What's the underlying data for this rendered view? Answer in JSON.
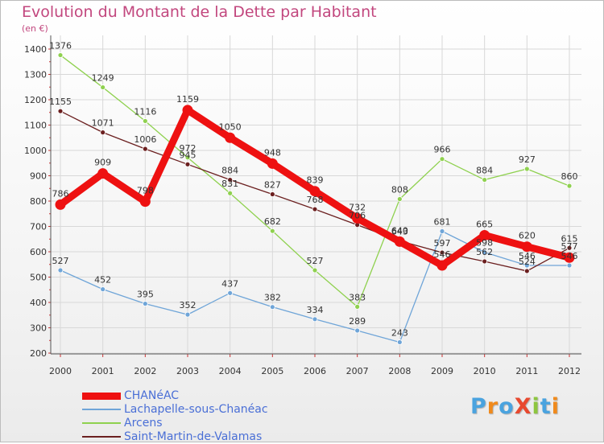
{
  "title": "Evolution du Montant de la Dette par Habitant",
  "unit": "(en €)",
  "logo": {
    "text": "ProXiti",
    "letter_colors": [
      "#4aa3df",
      "#f08a1c",
      "#4aa3df",
      "#e8492f",
      "#8dc63f",
      "#4aa3df",
      "#f08a1c"
    ]
  },
  "chart_data": {
    "type": "line",
    "title": "Evolution du Montant de la Dette par Habitant",
    "ylabel": "(en €)",
    "xlabel": "",
    "x": [
      "2000",
      "2001",
      "2002",
      "2003",
      "2004",
      "2005",
      "2006",
      "2007",
      "2008",
      "2009",
      "2010",
      "2011",
      "2012"
    ],
    "ylim": [
      200,
      1400
    ],
    "yticks": [
      "200",
      "300",
      "400",
      "500",
      "600",
      "700",
      "800",
      "900",
      "1000",
      "1100",
      "1200",
      "1300",
      "1400"
    ],
    "grid": true,
    "legend": "bottom-left",
    "series": [
      {
        "name": "CHANéAC",
        "color": "#ee1111",
        "emphasis": true,
        "values": [
          786,
          909,
          798,
          1159,
          1050,
          948,
          839,
          732,
          640,
          546,
          665,
          620,
          577
        ],
        "labels": [
          "786",
          "909",
          "798",
          "1159",
          "1050",
          "948",
          "839",
          "732",
          "640",
          "546",
          "665",
          "620",
          "577"
        ]
      },
      {
        "name": "Lachapelle-sous-Chanéac",
        "color": "#6fa5d8",
        "emphasis": false,
        "values": [
          527,
          452,
          395,
          352,
          437,
          382,
          334,
          289,
          243,
          681,
          598,
          546,
          546
        ],
        "labels": [
          "527",
          "452",
          "395",
          "352",
          "437",
          "382",
          "334",
          "289",
          "243",
          "681",
          "598",
          "546",
          "546"
        ]
      },
      {
        "name": "Arcens",
        "color": "#8fd14f",
        "emphasis": false,
        "values": [
          1376,
          1249,
          1116,
          972,
          831,
          682,
          527,
          383,
          808,
          966,
          884,
          927,
          860
        ],
        "labels": [
          "1376",
          "1249",
          "1116",
          "972",
          "831",
          "682",
          "527",
          "383",
          "808",
          "966",
          "884",
          "927",
          "860"
        ]
      },
      {
        "name": "Saint-Martin-de-Valamas",
        "color": "#6b1f1f",
        "emphasis": false,
        "values": [
          1155,
          1071,
          1006,
          945,
          884,
          827,
          768,
          706,
          643,
          597,
          562,
          524,
          615
        ],
        "labels": [
          "1155",
          "1071",
          "1006",
          "945",
          "884",
          "827",
          "768",
          "706",
          "643",
          "597",
          "562",
          "524",
          "615"
        ]
      }
    ]
  }
}
